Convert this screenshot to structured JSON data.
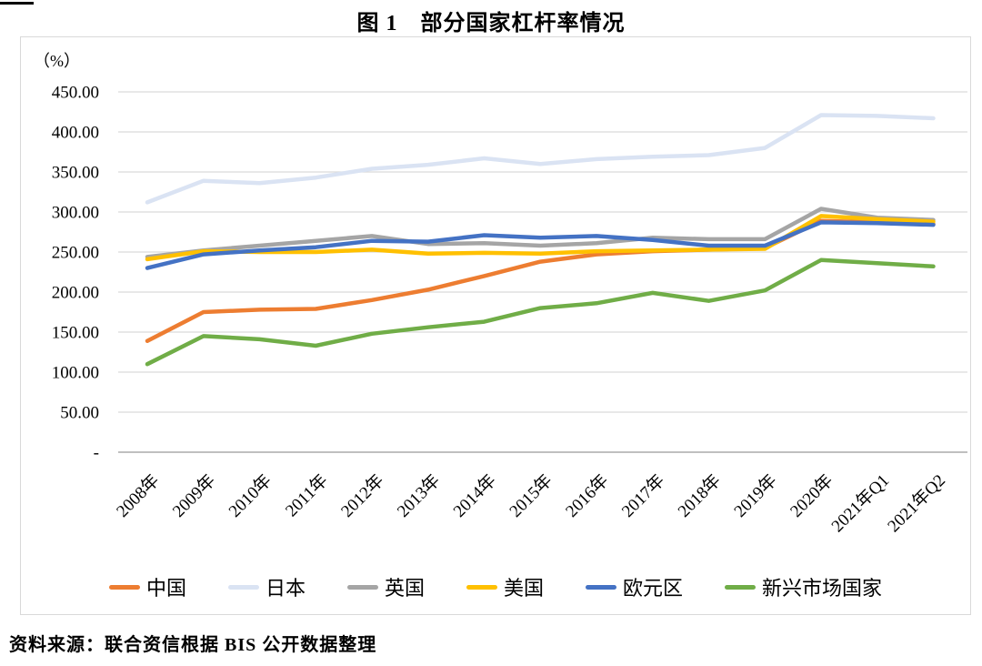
{
  "page": {
    "title": "图 1　部分国家杠杆率情况",
    "source_note": "资料来源：联合资信根据 BIS 公开数据整理"
  },
  "chart_data": {
    "type": "line",
    "title": "图 1　部分国家杠杆率情况",
    "unit_label": "（%）",
    "categories": [
      "2008年",
      "2009年",
      "2010年",
      "2011年",
      "2012年",
      "2013年",
      "2014年",
      "2015年",
      "2016年",
      "2017年",
      "2018年",
      "2019年",
      "2020年",
      "2021年Q1",
      "2021年Q2"
    ],
    "series": [
      {
        "name": "中国",
        "color": "#ED7D31",
        "values": [
          139,
          175,
          178,
          179,
          190,
          203,
          220,
          238,
          247,
          251,
          253,
          255,
          289,
          287,
          285
        ]
      },
      {
        "name": "日本",
        "color": "#DAE3F3",
        "values": [
          312,
          339,
          336,
          343,
          354,
          359,
          367,
          360,
          366,
          369,
          371,
          380,
          421,
          420,
          417
        ]
      },
      {
        "name": "英国",
        "color": "#A5A5A5",
        "values": [
          244,
          252,
          258,
          264,
          270,
          260,
          261,
          258,
          261,
          268,
          266,
          266,
          304,
          293,
          290
        ]
      },
      {
        "name": "美国",
        "color": "#FFC000",
        "values": [
          241,
          251,
          250,
          250,
          253,
          248,
          249,
          248,
          251,
          252,
          253,
          254,
          295,
          291,
          288
        ]
      },
      {
        "name": "欧元区",
        "color": "#4472C4",
        "values": [
          230,
          247,
          252,
          256,
          264,
          263,
          271,
          268,
          270,
          265,
          258,
          258,
          287,
          286,
          284
        ]
      },
      {
        "name": "新兴市场国家",
        "color": "#70AD47",
        "values": [
          110,
          145,
          141,
          133,
          148,
          156,
          163,
          180,
          186,
          199,
          189,
          202,
          240,
          236,
          232
        ]
      }
    ],
    "y_axis": {
      "min": 0,
      "max": 450,
      "step": 50,
      "tick_labels": [
        "450.00",
        "400.00",
        "350.00",
        "300.00",
        "250.00",
        "200.00",
        "150.00",
        "100.00",
        "50.00",
        "-"
      ]
    },
    "grid": true,
    "legend_position": "bottom",
    "grid_color": "#D9D9D9",
    "axis_color": "#BFBFBF"
  }
}
